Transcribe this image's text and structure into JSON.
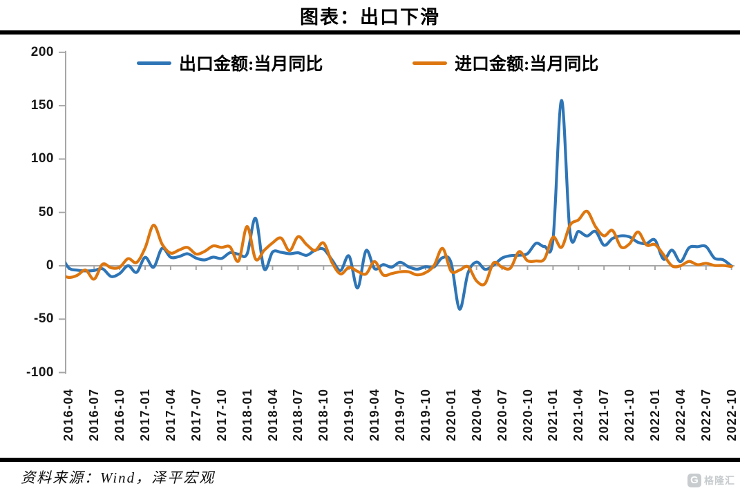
{
  "page": {
    "title": "图表：出口下滑",
    "source_note": "资料来源：Wind，泽平宏观"
  },
  "logo": {
    "icon_letter": "G",
    "brand_text": "格隆汇"
  },
  "colors": {
    "export_blue": "#2E75B6",
    "import_orange": "#DD760F",
    "axis_grey": "#A6A6A6",
    "rule_black": "#000000",
    "logo_grey": "#C8CCCF"
  },
  "chart_data": {
    "type": "line",
    "title": "图表：出口下滑",
    "unit": "%",
    "ylim": [
      -100,
      200
    ],
    "y_ticks": [
      200,
      150,
      100,
      50,
      0,
      -50,
      -100
    ],
    "grid": "zero-line-only",
    "legend_position": "top",
    "x_tick_labels": [
      "2016-04",
      "2016-07",
      "2016-10",
      "2017-01",
      "2017-04",
      "2017-07",
      "2017-10",
      "2018-01",
      "2018-04",
      "2018-07",
      "2018-10",
      "2019-01",
      "2019-04",
      "2019-07",
      "2019-10",
      "2020-01",
      "2020-04",
      "2020-07",
      "2020-10",
      "2021-01",
      "2021-04",
      "2021-07",
      "2021-10",
      "2022-01",
      "2022-04",
      "2022-07",
      "2022-10"
    ],
    "months": [
      "2016-03",
      "2016-04",
      "2016-05",
      "2016-06",
      "2016-07",
      "2016-08",
      "2016-09",
      "2016-10",
      "2016-11",
      "2016-12",
      "2017-01",
      "2017-02",
      "2017-03",
      "2017-04",
      "2017-05",
      "2017-06",
      "2017-07",
      "2017-08",
      "2017-09",
      "2017-10",
      "2017-11",
      "2017-12",
      "2018-01",
      "2018-02",
      "2018-03",
      "2018-04",
      "2018-05",
      "2018-06",
      "2018-07",
      "2018-08",
      "2018-09",
      "2018-10",
      "2018-11",
      "2018-12",
      "2019-01",
      "2019-02",
      "2019-03",
      "2019-04",
      "2019-05",
      "2019-06",
      "2019-07",
      "2019-08",
      "2019-09",
      "2019-10",
      "2019-11",
      "2019-12",
      "2020-01",
      "2020-02",
      "2020-03",
      "2020-04",
      "2020-05",
      "2020-06",
      "2020-07",
      "2020-08",
      "2020-09",
      "2020-10",
      "2020-11",
      "2020-12",
      "2021-01",
      "2021-02",
      "2021-03",
      "2021-04",
      "2021-05",
      "2021-06",
      "2021-07",
      "2021-08",
      "2021-09",
      "2021-10",
      "2021-11",
      "2021-12",
      "2022-01",
      "2022-02",
      "2022-03",
      "2022-04",
      "2022-05",
      "2022-06",
      "2022-07",
      "2022-08",
      "2022-09",
      "2022-10"
    ],
    "series": [
      {
        "name": "出口金额:当月同比",
        "color": "#2E75B6",
        "values": [
          11.5,
          -1.8,
          -4.1,
          -4.8,
          -4.4,
          -2.8,
          -10.0,
          -7.3,
          0.1,
          -6.1,
          7.9,
          -1.3,
          16.4,
          8.0,
          8.7,
          11.3,
          7.2,
          5.5,
          8.1,
          6.9,
          12.3,
          10.9,
          11.1,
          44.5,
          -2.7,
          12.9,
          12.6,
          11.3,
          12.2,
          9.8,
          14.5,
          15.6,
          5.4,
          -4.4,
          9.1,
          -20.8,
          14.2,
          -2.7,
          1.1,
          -1.3,
          3.3,
          -1.0,
          -3.2,
          -0.9,
          -1.1,
          7.6,
          3.0,
          -40.6,
          -6.6,
          3.5,
          -3.3,
          0.5,
          7.2,
          9.5,
          9.9,
          11.4,
          21.1,
          18.1,
          24.8,
          154.9,
          30.6,
          32.3,
          27.9,
          32.2,
          19.3,
          25.6,
          28.1,
          27.1,
          22.0,
          20.9,
          24.1,
          6.2,
          14.7,
          3.9,
          16.9,
          17.9,
          18.0,
          7.1,
          5.7,
          -0.3
        ]
      },
      {
        "name": "进口金额:当月同比",
        "color": "#DD760F",
        "values": [
          -7.6,
          -10.9,
          -9.0,
          -4.0,
          -12.5,
          1.5,
          -1.9,
          -1.4,
          6.7,
          3.1,
          16.7,
          38.1,
          20.3,
          11.9,
          14.8,
          17.2,
          11.0,
          13.5,
          18.6,
          17.2,
          17.7,
          4.5,
          36.8,
          6.3,
          14.4,
          21.5,
          26.0,
          14.1,
          27.3,
          19.9,
          14.3,
          21.4,
          3.0,
          -7.6,
          -1.5,
          -5.2,
          -7.6,
          4.0,
          -8.5,
          -7.3,
          -5.6,
          -5.6,
          -8.5,
          -6.4,
          0.3,
          16.3,
          -5.0,
          -4.0,
          -0.9,
          -14.2,
          -16.7,
          2.7,
          -1.4,
          -2.1,
          13.2,
          4.7,
          4.5,
          6.5,
          26.8,
          17.3,
          38.1,
          43.1,
          51.1,
          36.7,
          28.1,
          33.1,
          17.6,
          20.6,
          31.7,
          19.5,
          19.9,
          10.4,
          -0.1,
          0.0,
          4.1,
          1.0,
          2.3,
          0.3,
          0.3,
          -0.7
        ]
      }
    ]
  }
}
